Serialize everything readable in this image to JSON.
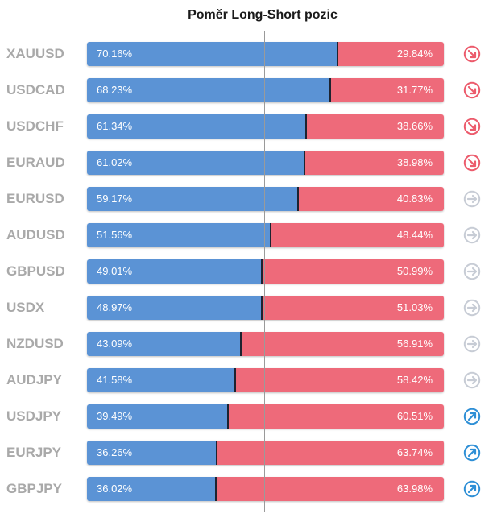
{
  "title": "Poměr Long-Short pozic",
  "colors": {
    "long": "#5b93d5",
    "short": "#ee6a7a",
    "separator": "#1d2330",
    "symbol_text": "#a9a9a9",
    "trend_down": "#ec5b6c",
    "trend_neutral": "#c7ccd5",
    "trend_up": "#2e8fd6"
  },
  "chart_data": {
    "type": "bar",
    "stacked": true,
    "orientation": "horizontal",
    "title": "Poměr Long-Short pozic",
    "categories": [
      "XAUUSD",
      "USDCAD",
      "USDCHF",
      "EURAUD",
      "EURUSD",
      "AUDUSD",
      "GBPUSD",
      "USDX",
      "NZDUSD",
      "AUDJPY",
      "USDJPY",
      "EURJPY",
      "GBPJPY"
    ],
    "xlim": [
      0,
      100
    ],
    "series": [
      {
        "values": [
          70.16,
          68.23,
          61.34,
          61.02,
          59.17,
          51.56,
          49.01,
          48.97,
          43.09,
          41.58,
          39.49,
          36.26,
          36.02
        ]
      },
      {
        "values": [
          29.84,
          31.77,
          38.66,
          38.98,
          40.83,
          48.44,
          50.99,
          51.03,
          56.91,
          58.42,
          60.51,
          63.74,
          63.98
        ]
      }
    ],
    "long_labels": [
      "70.16%",
      "68.23%",
      "61.34%",
      "61.02%",
      "59.17%",
      "51.56%",
      "49.01%",
      "48.97%",
      "43.09%",
      "41.58%",
      "39.49%",
      "36.26%",
      "36.02%"
    ],
    "short_labels": [
      "29.84%",
      "31.77%",
      "38.66%",
      "38.98%",
      "40.83%",
      "48.44%",
      "50.99%",
      "51.03%",
      "56.91%",
      "58.42%",
      "60.51%",
      "63.74%",
      "63.98%"
    ],
    "trend_icons": [
      "arrow-down-right-icon",
      "arrow-down-right-icon",
      "arrow-down-right-icon",
      "arrow-down-right-icon",
      "arrow-right-icon",
      "arrow-right-icon",
      "arrow-right-icon",
      "arrow-right-icon",
      "arrow-right-icon",
      "arrow-right-icon",
      "arrow-up-right-icon",
      "arrow-up-right-icon",
      "arrow-up-right-icon"
    ]
  }
}
